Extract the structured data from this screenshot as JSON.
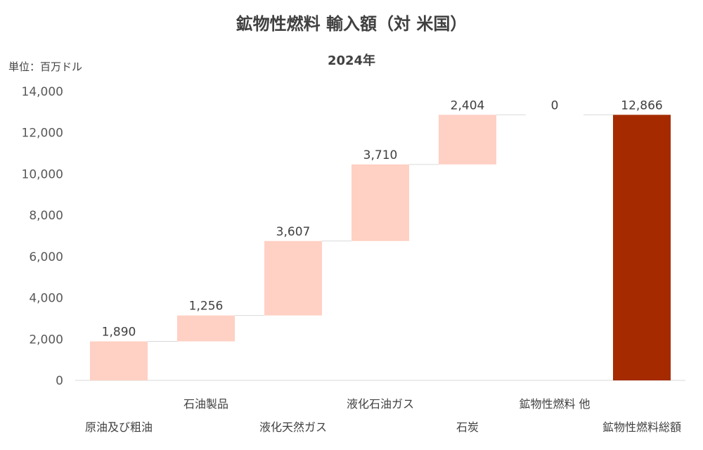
{
  "chart_data": {
    "type": "bar",
    "subtype": "waterfall",
    "title": "鉱物性燃料 輸入額（対 米国）",
    "subtitle": "2024年",
    "unit_label": "単位：百万ドル",
    "categories": [
      "原油及び粗油",
      "石油製品",
      "液化天然ガス",
      "液化石油ガス",
      "石炭",
      "鉱物性燃料 他",
      "鉱物性燃料総額"
    ],
    "values": [
      1890,
      1256,
      3607,
      3710,
      2404,
      0,
      12866
    ],
    "data_labels": [
      "1,890",
      "1,256",
      "3,607",
      "3,710",
      "2,404",
      "0",
      "12,866"
    ],
    "is_total": [
      false,
      false,
      false,
      false,
      false,
      false,
      true
    ],
    "ylim": [
      0,
      14000
    ],
    "y_ticks": [
      0,
      2000,
      4000,
      6000,
      8000,
      10000,
      12000,
      14000
    ],
    "y_tick_labels": [
      "0",
      "2,000",
      "4,000",
      "6,000",
      "8,000",
      "10,000",
      "12,000",
      "14,000"
    ],
    "grid": false,
    "legend": "none",
    "colors": {
      "increment": "#ffd0c4",
      "total": "#a52a00",
      "axis": "#d9d9d9",
      "connector": "#d9d9d9"
    }
  }
}
